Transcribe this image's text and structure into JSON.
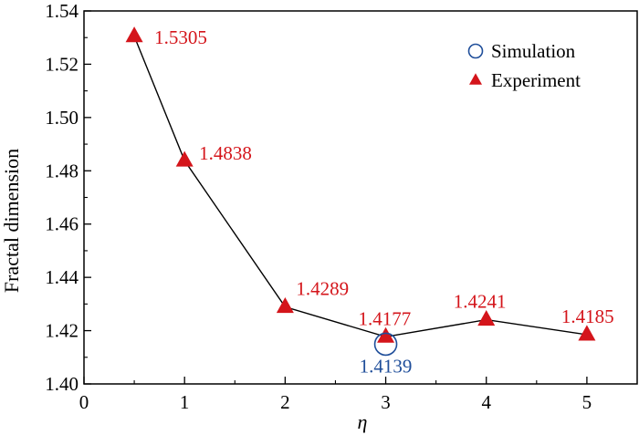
{
  "chart_data": {
    "type": "line",
    "xlabel": "η",
    "ylabel": "Fractal dimension",
    "xlim": [
      0,
      5.5
    ],
    "ylim": [
      1.4,
      1.54
    ],
    "x_ticks": [
      0,
      1,
      2,
      3,
      4,
      5
    ],
    "x_tick_labels": [
      "0",
      "1",
      "2",
      "3",
      "4",
      "5"
    ],
    "y_ticks": [
      1.4,
      1.42,
      1.44,
      1.46,
      1.48,
      1.5,
      1.52,
      1.54
    ],
    "y_tick_labels": [
      "1.40",
      "1.42",
      "1.44",
      "1.46",
      "1.48",
      "1.50",
      "1.52",
      "1.54"
    ],
    "grid": false,
    "legend_position": "top-right",
    "series": [
      {
        "name": "Simulation",
        "marker": "open-circle",
        "color": "#1f4e9a",
        "x": [
          3
        ],
        "y": [
          1.4139
        ],
        "labels": [
          "1.4139"
        ]
      },
      {
        "name": "Experiment",
        "marker": "filled-triangle",
        "color": "#d4151b",
        "line_color": "#000000",
        "x": [
          0.5,
          1,
          2,
          3,
          4,
          5
        ],
        "y": [
          1.5305,
          1.4838,
          1.4289,
          1.4177,
          1.4241,
          1.4185
        ],
        "labels": [
          "1.5305",
          "1.4838",
          "1.4289",
          "1.4177",
          "1.4241",
          "1.4185"
        ]
      }
    ]
  }
}
